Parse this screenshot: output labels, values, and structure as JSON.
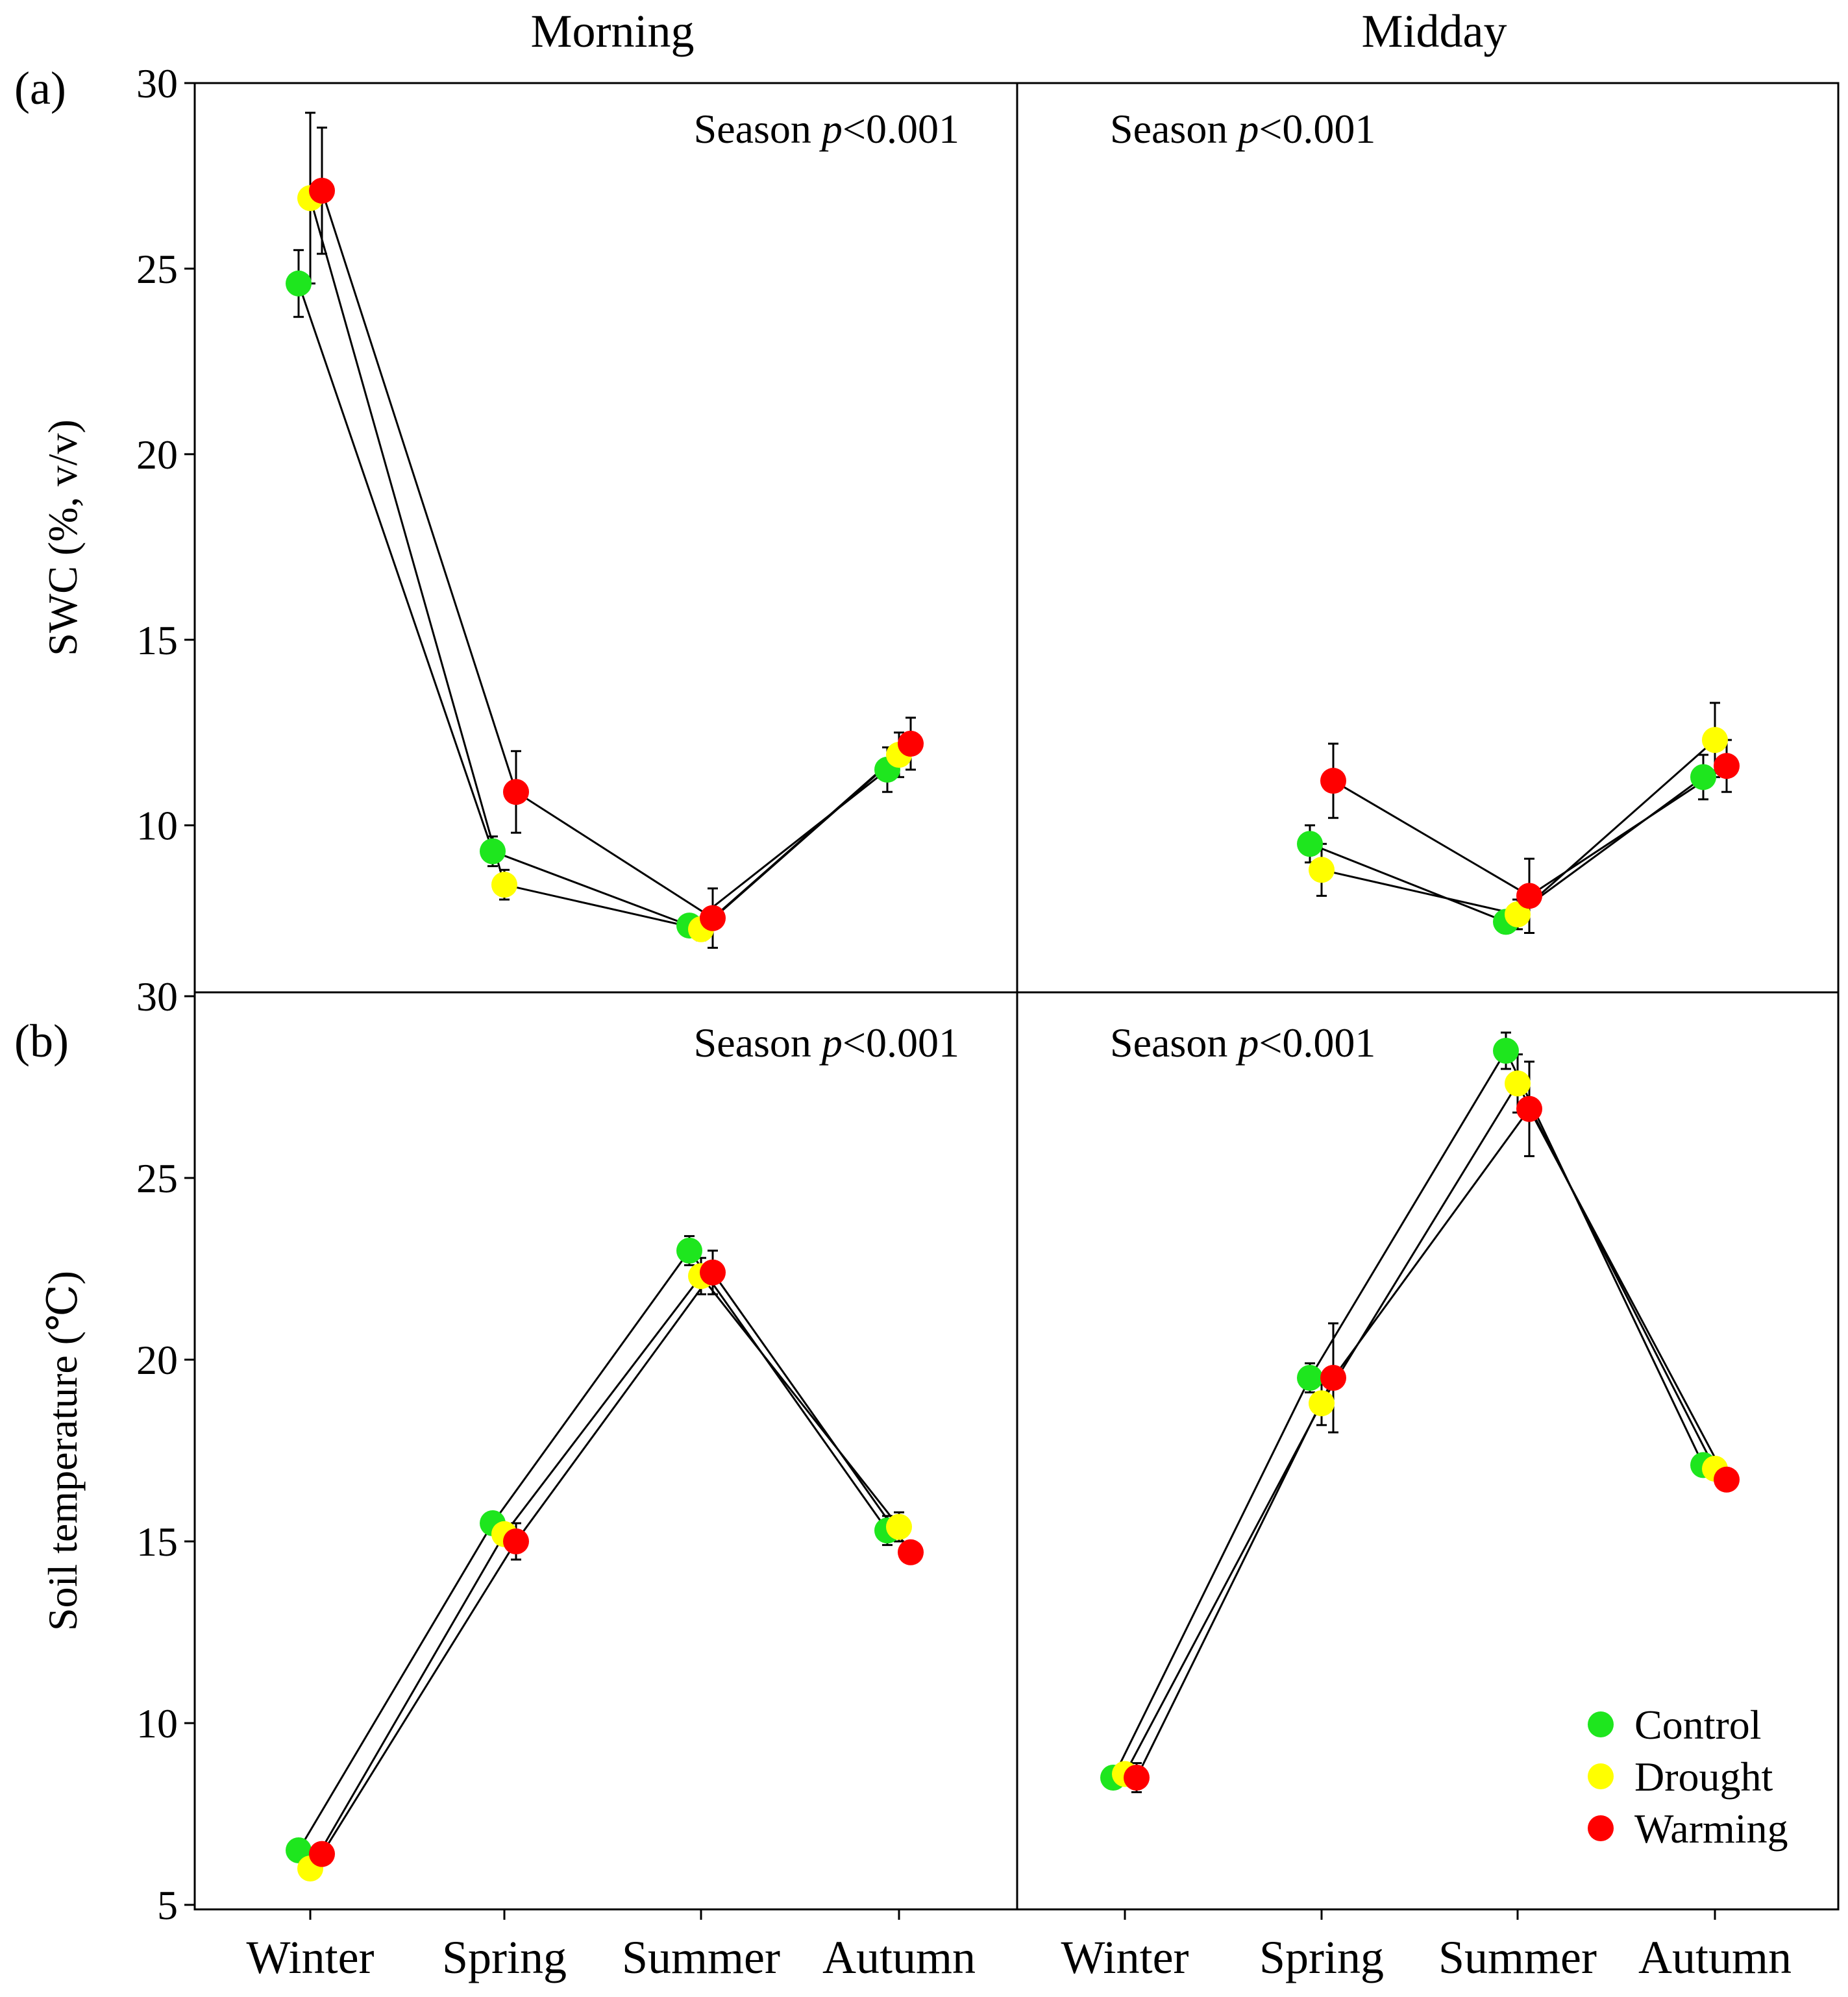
{
  "chart_data": {
    "type": "line",
    "column_titles": [
      "Morning",
      "Midday"
    ],
    "x_categories": [
      "Winter",
      "Spring",
      "Summer",
      "Autumn"
    ],
    "legend": {
      "placement": "bottom-right",
      "entries": [
        {
          "name": "Control",
          "color": "#1ee61e"
        },
        {
          "name": "Drought",
          "color": "#ffff00"
        },
        {
          "name": "Warming",
          "color": "#ff0000"
        }
      ]
    },
    "rows": [
      {
        "id": "a",
        "label": "(a)",
        "ylabel": "SWC (%, v/v)",
        "ylim": [
          5.5,
          30
        ],
        "yticks": [
          30,
          25,
          20,
          15,
          10
        ],
        "panels": [
          {
            "column": "Morning",
            "annotation_prefix": "Season ",
            "annotation_italic": "p",
            "annotation_suffix": "<0.001",
            "annotation_pos": "top-right",
            "series": [
              {
                "name": "Control",
                "values": [
                  24.6,
                  9.3,
                  7.3,
                  11.5
                ],
                "errors": [
                  0.9,
                  0.4,
                  0.2,
                  0.6
                ]
              },
              {
                "name": "Drought",
                "values": [
                  26.9,
                  8.4,
                  7.2,
                  11.9
                ],
                "errors": [
                  2.3,
                  0.4,
                  0.3,
                  0.6
                ]
              },
              {
                "name": "Warming",
                "values": [
                  27.1,
                  10.9,
                  7.5,
                  12.2
                ],
                "errors": [
                  1.7,
                  1.1,
                  0.8,
                  0.7
                ]
              }
            ]
          },
          {
            "column": "Midday",
            "annotation_prefix": "Season ",
            "annotation_italic": "p",
            "annotation_suffix": "<0.001",
            "annotation_pos": "top-left",
            "series": [
              {
                "name": "Control",
                "values": [
                  null,
                  9.5,
                  7.4,
                  11.3
                ],
                "errors": [
                  0,
                  0.5,
                  0.3,
                  0.6
                ]
              },
              {
                "name": "Drought",
                "values": [
                  null,
                  8.8,
                  7.6,
                  12.3
                ],
                "errors": [
                  0,
                  0.7,
                  0.4,
                  1.0
                ]
              },
              {
                "name": "Warming",
                "values": [
                  null,
                  11.2,
                  8.1,
                  11.6
                ],
                "errors": [
                  0,
                  1.0,
                  1.0,
                  0.7
                ]
              }
            ]
          }
        ]
      },
      {
        "id": "b",
        "label": "(b)",
        "ylabel": "Soil temperature (℃)",
        "ylim": [
          5,
          30
        ],
        "yticks": [
          30,
          25,
          20,
          15,
          10,
          5
        ],
        "panels": [
          {
            "column": "Morning",
            "annotation_prefix": "Season ",
            "annotation_italic": "p",
            "annotation_suffix": "<0.001",
            "annotation_pos": "top-right",
            "series": [
              {
                "name": "Control",
                "values": [
                  6.5,
                  15.5,
                  23.0,
                  15.3
                ],
                "errors": [
                  0.2,
                  0.3,
                  0.4,
                  0.4
                ]
              },
              {
                "name": "Drought",
                "values": [
                  6.0,
                  15.2,
                  22.3,
                  15.4
                ],
                "errors": [
                  0.2,
                  0.3,
                  0.5,
                  0.4
                ]
              },
              {
                "name": "Warming",
                "values": [
                  6.4,
                  15.0,
                  22.4,
                  14.7
                ],
                "errors": [
                  0.2,
                  0.5,
                  0.6,
                  0.2
                ]
              }
            ]
          },
          {
            "column": "Midday",
            "annotation_prefix": "Season ",
            "annotation_italic": "p",
            "annotation_suffix": "<0.001",
            "annotation_pos": "top-left",
            "series": [
              {
                "name": "Control",
                "values": [
                  8.5,
                  19.5,
                  28.5,
                  17.1
                ],
                "errors": [
                  0.2,
                  0.4,
                  0.5,
                  0.2
                ]
              },
              {
                "name": "Drought",
                "values": [
                  8.6,
                  18.8,
                  27.6,
                  17.0
                ],
                "errors": [
                  0.2,
                  0.6,
                  0.8,
                  0.2
                ]
              },
              {
                "name": "Warming",
                "values": [
                  8.5,
                  19.5,
                  26.9,
                  16.7
                ],
                "errors": [
                  0.4,
                  1.5,
                  1.3,
                  0.2
                ]
              }
            ]
          }
        ]
      }
    ]
  }
}
